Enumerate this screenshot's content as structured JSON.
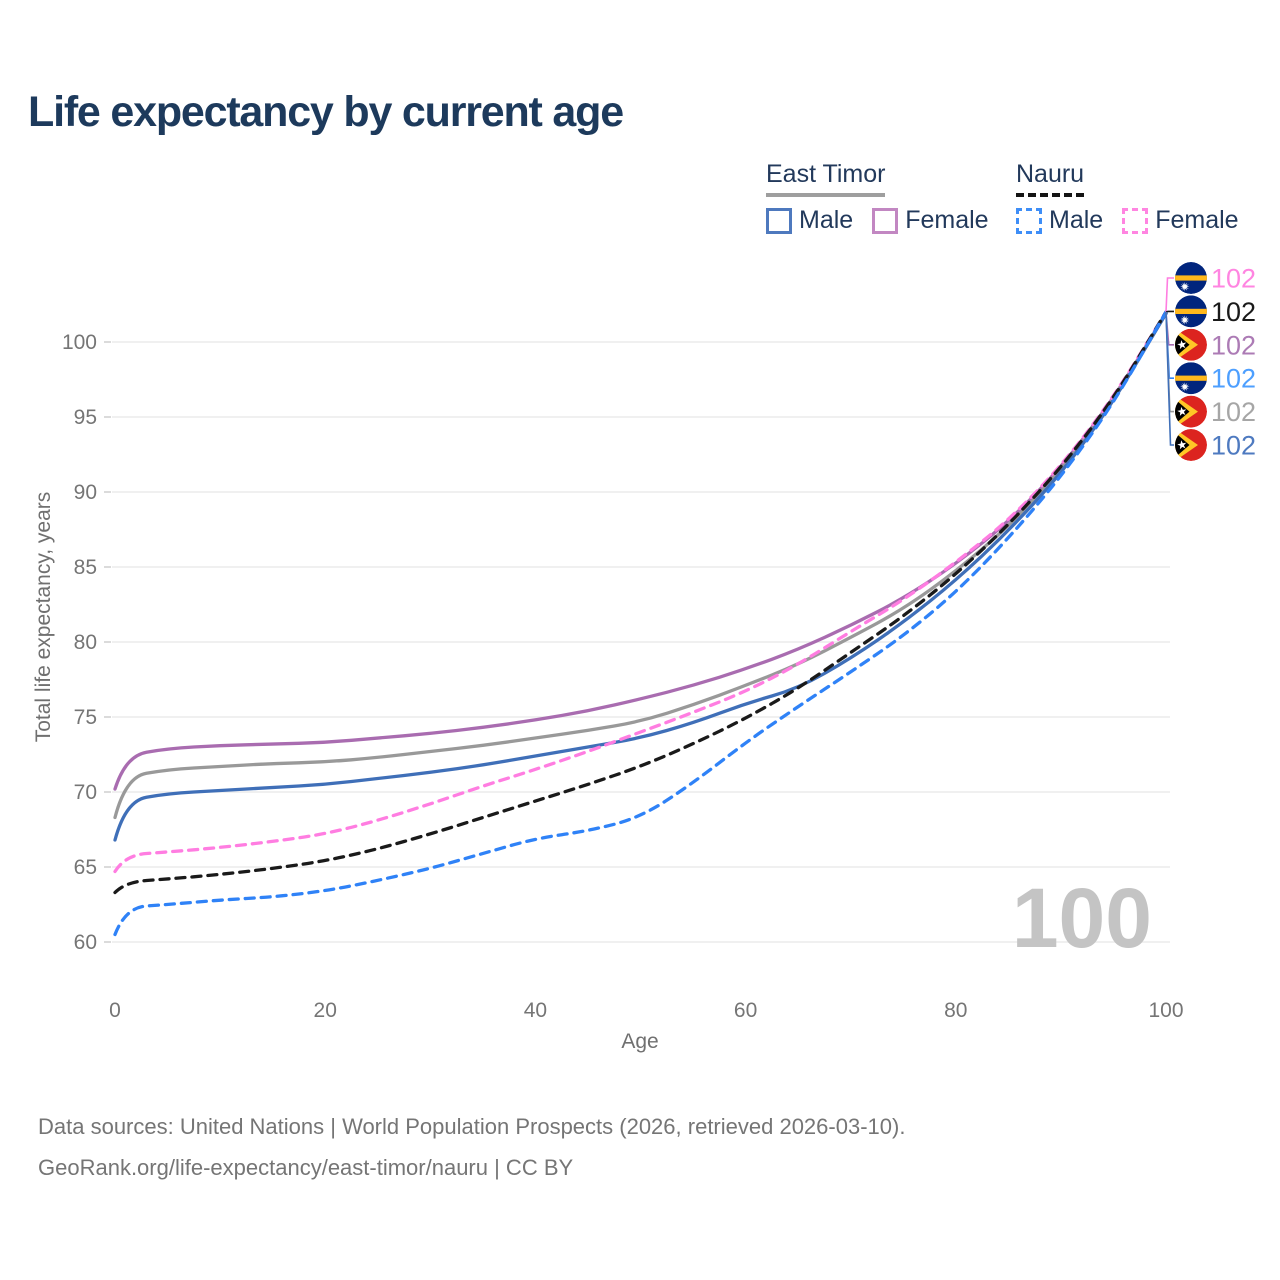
{
  "page": {
    "title": "Life expectancy by current age",
    "watermark": "100"
  },
  "legend": {
    "position": "top-right",
    "groups": [
      {
        "label": "East Timor",
        "line_style": "solid",
        "header_swatch_color": "#9e9e9e",
        "items": [
          {
            "label": "Male",
            "color": "#4e79be",
            "dashed": false
          },
          {
            "label": "Female",
            "color": "#c287c2",
            "dashed": false
          }
        ]
      },
      {
        "label": "Nauru",
        "line_style": "dashed",
        "header_swatch_color": "#141414",
        "items": [
          {
            "label": "Male",
            "color": "#3e8ef7",
            "dashed": true
          },
          {
            "label": "Female",
            "color": "#ff85e1",
            "dashed": true
          }
        ]
      }
    ]
  },
  "chart_data": {
    "type": "line",
    "title": "Life expectancy by current age",
    "xlabel": "Age",
    "ylabel": "Total life expectancy, years",
    "xlim": [
      0,
      100
    ],
    "ylim": [
      60,
      103
    ],
    "x_ticks": [
      0,
      20,
      40,
      60,
      80,
      100
    ],
    "y_ticks": [
      60,
      65,
      70,
      75,
      80,
      85,
      90,
      95,
      100
    ],
    "grid": "horizontal",
    "x": [
      0,
      1,
      5,
      10,
      15,
      20,
      25,
      30,
      35,
      40,
      45,
      50,
      55,
      60,
      65,
      70,
      75,
      80,
      85,
      90,
      95,
      100
    ],
    "series": [
      {
        "id": "east-timor-female",
        "name": "East Timor Female",
        "country": "east-timor",
        "group": "Female",
        "color": "#a96cb0",
        "dashed": false,
        "end_value": "102",
        "end_label_color": "#ac7bb5",
        "end_row": 2,
        "values": [
          70.2,
          72.4,
          72.9,
          73.1,
          73.2,
          73.3,
          73.6,
          73.9,
          74.3,
          74.8,
          75.4,
          76.2,
          77.1,
          78.2,
          79.5,
          81.1,
          82.9,
          85.2,
          88.0,
          91.6,
          96.2,
          101.9
        ]
      },
      {
        "id": "east-timor-total",
        "name": "East Timor",
        "country": "east-timor",
        "group": "Total",
        "color": "#999999",
        "dashed": false,
        "end_value": "102",
        "end_label_color": "#a6a6a6",
        "end_row": 4,
        "values": [
          68.3,
          71.0,
          71.5,
          71.7,
          71.9,
          72.0,
          72.3,
          72.7,
          73.1,
          73.6,
          74.1,
          74.7,
          75.8,
          77.1,
          78.5,
          80.3,
          82.2,
          84.7,
          87.7,
          91.4,
          96.1,
          101.9
        ]
      },
      {
        "id": "east-timor-male",
        "name": "East Timor Male",
        "country": "east-timor",
        "group": "Male",
        "color": "#3f6fb8",
        "dashed": false,
        "end_value": "102",
        "end_label_color": "#4e7ac0",
        "end_row": 5,
        "values": [
          66.8,
          69.4,
          69.9,
          70.1,
          70.3,
          70.5,
          70.9,
          71.3,
          71.8,
          72.4,
          73.0,
          73.6,
          74.6,
          75.9,
          76.9,
          78.9,
          81.3,
          84.1,
          87.4,
          91.2,
          96.0,
          101.9
        ]
      },
      {
        "id": "nauru-female",
        "name": "Nauru Female",
        "country": "nauru",
        "group": "Female",
        "color": "#ff7de1",
        "dashed": true,
        "end_value": "102",
        "end_label_color": "#ff85e1",
        "end_row": 0,
        "values": [
          64.7,
          65.8,
          66.0,
          66.3,
          66.7,
          67.2,
          68.1,
          69.2,
          70.4,
          71.5,
          72.7,
          74.0,
          75.3,
          76.7,
          78.5,
          80.7,
          82.8,
          85.3,
          88.1,
          91.7,
          96.3,
          102.0
        ]
      },
      {
        "id": "nauru-total",
        "name": "Nauru",
        "country": "nauru",
        "group": "Total",
        "color": "#1a1a1a",
        "dashed": true,
        "end_value": "102",
        "end_label_color": "#1a1a1a",
        "end_row": 1,
        "values": [
          63.3,
          64.0,
          64.2,
          64.5,
          64.9,
          65.4,
          66.2,
          67.2,
          68.3,
          69.4,
          70.5,
          71.7,
          73.2,
          74.9,
          76.9,
          79.3,
          81.7,
          84.5,
          87.8,
          91.6,
          96.2,
          102.0
        ]
      },
      {
        "id": "nauru-male",
        "name": "Nauru Male",
        "country": "nauru",
        "group": "Male",
        "color": "#2f82f7",
        "dashed": true,
        "end_value": "102",
        "end_label_color": "#4d9fff",
        "end_row": 3,
        "values": [
          60.5,
          62.3,
          62.5,
          62.8,
          63.0,
          63.4,
          64.1,
          64.9,
          65.9,
          66.9,
          67.4,
          68.3,
          70.6,
          73.3,
          75.7,
          78.0,
          80.4,
          83.3,
          86.9,
          91.0,
          95.9,
          102.0
        ]
      }
    ],
    "end_label_rows_top_to_bottom": [
      "nauru-female",
      "nauru-total",
      "east-timor-female",
      "nauru-male",
      "east-timor-total",
      "east-timor-male"
    ]
  },
  "flags": {
    "nauru": {
      "field": "#01257d",
      "stripe": "#ffb81c",
      "star": "#ffffff"
    },
    "east_timor": {
      "field": "#dc241f",
      "chevron": "#ffc726",
      "triangle": "#000000",
      "star": "#ffffff"
    }
  },
  "footer": {
    "line1": "Data sources: United Nations | World Population Prospects (2026, retrieved 2026-03-10).",
    "line2": "GeoRank.org/life-expectancy/east-timor/nauru | CC BY"
  }
}
